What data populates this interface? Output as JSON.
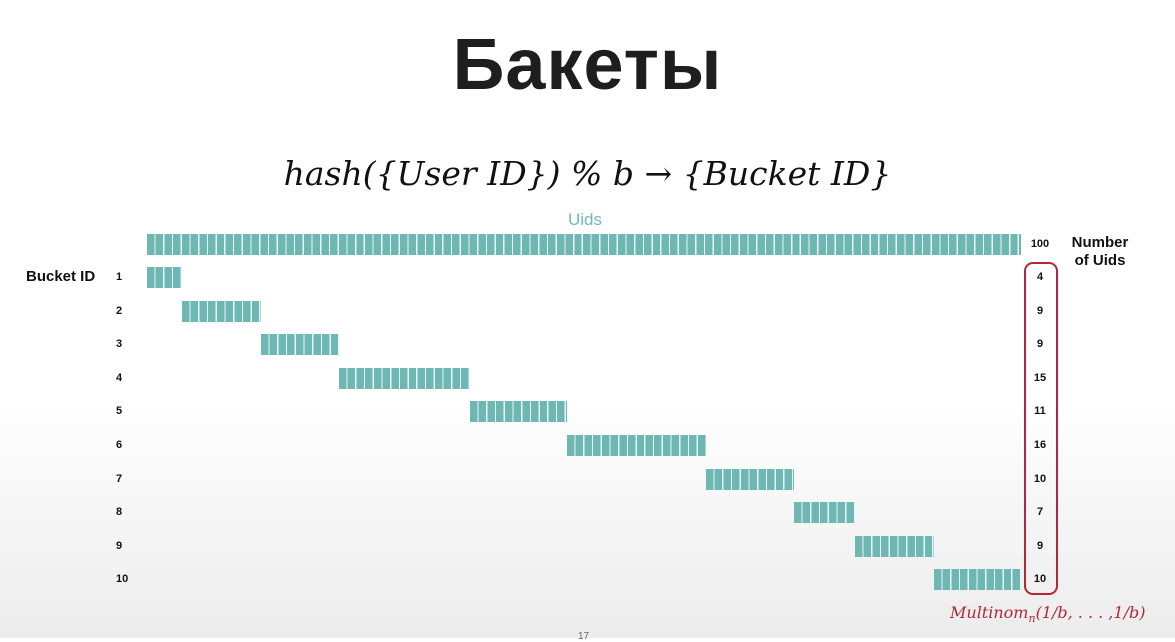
{
  "slide": {
    "title": "Бакеты",
    "formula": "hash({User ID}) % b → {Bucket ID}",
    "uids_label": "Uids",
    "number_header_line1": "Number",
    "number_header_line2": "of Uids",
    "bucket_id_header": "Bucket ID",
    "total_count": "100",
    "multinom_prefix": "Multinom",
    "multinom_subscript": "n",
    "multinom_args": "(1/b, . . . ,1/b)",
    "page_number": "17"
  },
  "colors": {
    "bar": "#6fb7b2",
    "uids_label": "#74bbb5",
    "highlight": "#b0283a",
    "text": "#111111"
  },
  "chart_data": {
    "type": "bar",
    "total_uids": 100,
    "categories": [
      "1",
      "2",
      "3",
      "4",
      "5",
      "6",
      "7",
      "8",
      "9",
      "10"
    ],
    "values": [
      4,
      9,
      9,
      15,
      11,
      16,
      10,
      7,
      9,
      10
    ]
  }
}
